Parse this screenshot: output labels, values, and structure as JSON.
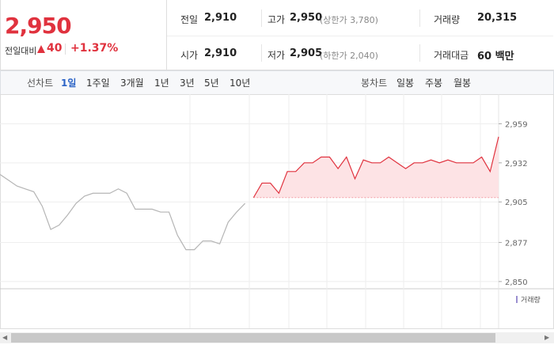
{
  "header": {
    "price": "2,950",
    "change_label": "전일대비",
    "change": "40",
    "change_pct": "+1.37%"
  },
  "quotes": [
    [
      {
        "label": "전일",
        "value": "2,910"
      },
      {
        "label": "고가",
        "value": "2,950",
        "note": "(상한가 3,780)"
      },
      {
        "label": "거래량",
        "value": "20,315"
      }
    ],
    [
      {
        "label": "시가",
        "value": "2,910"
      },
      {
        "label": "저가",
        "value": "2,905",
        "note": "(하한가 2,040)"
      },
      {
        "label": "거래대금",
        "value": "60 백만"
      }
    ]
  ],
  "tabs": {
    "line_label": "선차트",
    "line_periods": [
      "1일",
      "1주일",
      "3개월",
      "1년",
      "3년",
      "5년",
      "10년"
    ],
    "candle_label": "봉차트",
    "candle_periods": [
      "일봉",
      "주봉",
      "월봉"
    ]
  },
  "chart_data": {
    "type": "line",
    "categories": [
      null,
      null,
      null,
      null,
      null,
      null,
      null,
      null,
      null,
      null,
      null,
      null,
      null,
      null,
      null,
      null,
      null,
      null,
      null,
      null,
      null,
      null,
      null,
      null,
      null,
      null,
      null,
      null,
      null,
      null,
      null,
      null,
      null,
      null,
      null,
      null,
      null,
      null,
      null,
      null,
      null,
      null,
      null,
      null,
      null,
      null,
      null,
      null,
      null,
      null,
      null,
      null,
      null,
      null,
      null,
      null,
      null,
      null,
      null,
      null
    ],
    "series": [
      {
        "color": "#b5b5b5",
        "values": [
          2924,
          2920,
          2916,
          2914,
          2912,
          2902,
          2886,
          2889,
          2896,
          2904,
          2909,
          2911,
          2911,
          2911,
          2914,
          2911,
          2900,
          2900,
          2900,
          2898,
          2898,
          2882,
          2872,
          2872,
          2878,
          2878,
          2876,
          2891,
          2898,
          2904,
          null,
          null,
          null,
          null,
          null,
          null,
          null,
          null,
          null,
          null,
          null,
          null,
          null,
          null,
          null,
          null,
          null,
          null,
          null,
          null,
          null,
          null,
          null,
          null,
          null,
          null,
          null,
          null,
          null,
          null
        ]
      },
      {
        "color": "#e0323e",
        "fill": "#fde3e5",
        "values": [
          null,
          null,
          null,
          null,
          null,
          null,
          null,
          null,
          null,
          null,
          null,
          null,
          null,
          null,
          null,
          null,
          null,
          null,
          null,
          null,
          null,
          null,
          null,
          null,
          null,
          null,
          null,
          null,
          null,
          null,
          2908,
          2918,
          2918,
          2911,
          2926,
          2926,
          2932,
          2932,
          2936,
          2936,
          2928,
          2936,
          2921,
          2934,
          2932,
          2932,
          2936,
          2932,
          2928,
          2932,
          2932,
          2934,
          2932,
          2934,
          2932,
          2932,
          2932,
          2936,
          2926,
          2950
        ]
      }
    ],
    "ylim": [
      2845,
      2974
    ],
    "yticks": [
      {
        "value": 2850,
        "label": "2,850"
      },
      {
        "value": 2877,
        "label": "2,877"
      },
      {
        "value": 2905,
        "label": "2,905"
      },
      {
        "value": 2932,
        "label": "2,932"
      },
      {
        "value": 2959,
        "label": "2,959"
      }
    ],
    "grid": true,
    "volume_label": "거래량"
  }
}
